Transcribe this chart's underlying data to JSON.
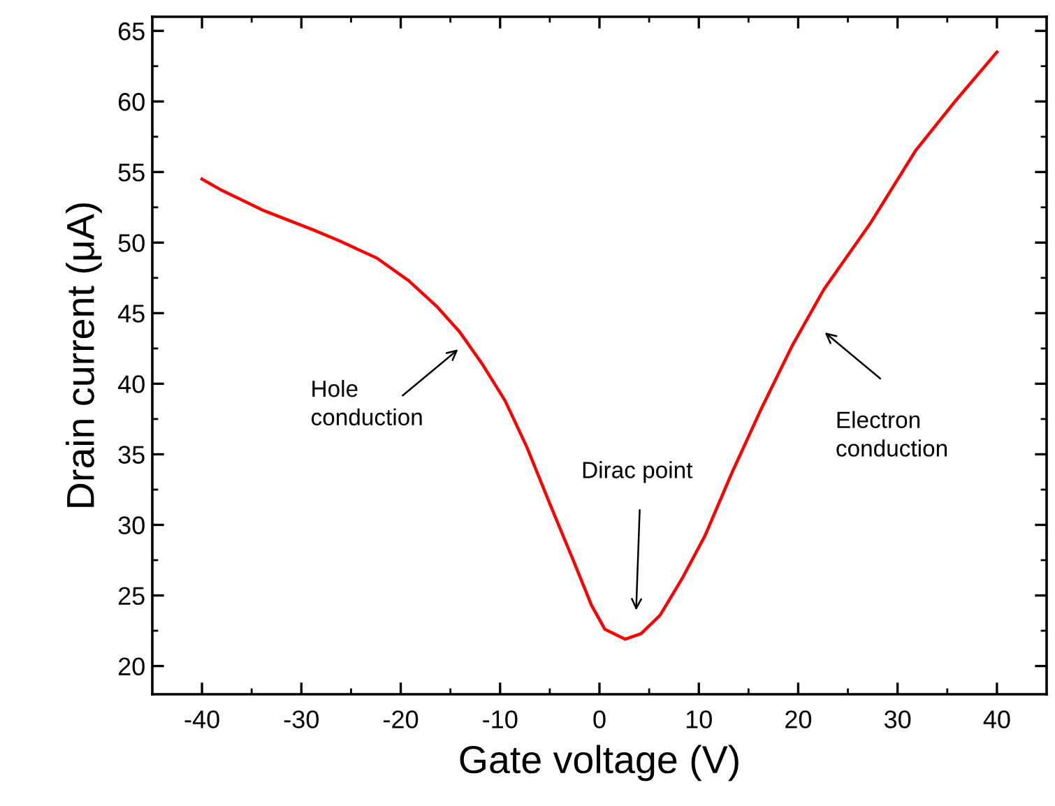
{
  "chart_data": {
    "type": "line",
    "xlabel": "Gate voltage (V)",
    "ylabel": "Drain current (μA)",
    "x": [
      -40,
      -38,
      -33.9,
      -28.8,
      -26.1,
      -22.4,
      -19.2,
      -16.4,
      -14.1,
      -11.8,
      -9.5,
      -7.3,
      -5.0,
      -2.7,
      -0.8,
      0.55,
      2.6,
      4.2,
      6.1,
      8.4,
      10.6,
      13.4,
      16.2,
      19.4,
      22.6,
      27.2,
      31.8,
      35.9,
      40
    ],
    "series": [
      {
        "color": "#ff0000",
        "values": [
          54.5,
          53.7,
          52.3,
          50.9,
          50.1,
          48.9,
          47.3,
          45.5,
          43.7,
          41.4,
          38.8,
          35.5,
          31.5,
          27.6,
          24.3,
          22.6,
          21.9,
          22.3,
          23.6,
          26.3,
          29.2,
          33.8,
          38.1,
          42.7,
          46.7,
          51.3,
          56.5,
          60.1,
          63.5
        ]
      }
    ],
    "xlim": [
      -45,
      45
    ],
    "xticks": [
      -40,
      -30,
      -20,
      -10,
      0,
      10,
      20,
      30,
      40
    ],
    "ylim": [
      18,
      66
    ],
    "yticks": [
      20,
      25,
      30,
      35,
      40,
      45,
      50,
      55,
      60,
      65
    ],
    "grid": false,
    "legend": false,
    "marker": "none",
    "line_style": "solid",
    "annotations": [
      "Hole\nconduction",
      "Dirac point",
      "Electron\nconduction"
    ]
  }
}
